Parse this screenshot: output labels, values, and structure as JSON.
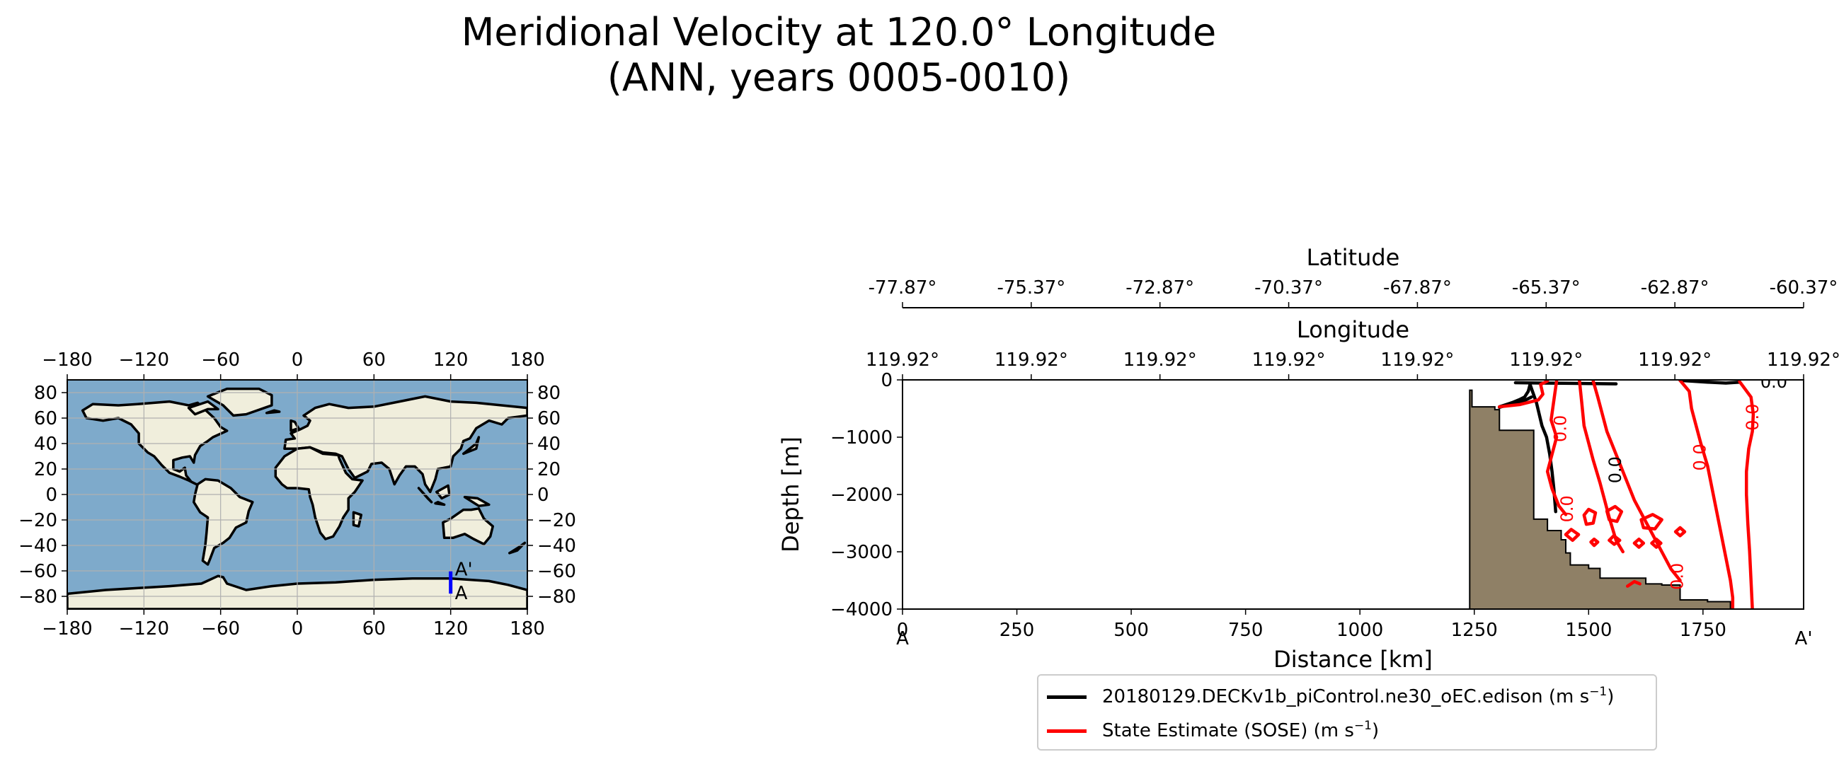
{
  "title": {
    "line1": "Meridional Velocity at 120.0° Longitude",
    "line2": "(ANN, years 0005-0010)"
  },
  "colors": {
    "land": "#f0eedc",
    "ocean": "#7eaacb",
    "seafloor": "#8f8066",
    "model_contour": "#000000",
    "obs_contour": "#ff0000",
    "transect": "#0000ff",
    "grid": "#b0b0b0"
  },
  "map": {
    "x_ticks": [
      "−180",
      "−120",
      "−60",
      "0",
      "60",
      "120",
      "180"
    ],
    "y_ticks": [
      "80",
      "60",
      "40",
      "20",
      "0",
      "−20",
      "−40",
      "−60",
      "−80"
    ],
    "x_tick_values": [
      -180,
      -120,
      -60,
      0,
      60,
      120,
      180
    ],
    "y_tick_values": [
      80,
      60,
      40,
      20,
      0,
      -20,
      -40,
      -60,
      -80
    ],
    "transect": {
      "lon": 120.0,
      "lat_start": -77.87,
      "lat_end": -60.37,
      "start_label": "A",
      "end_label": "A'"
    }
  },
  "chart_data": {
    "type": "contour",
    "xlabel": "Distance [km]",
    "ylabel": "Depth [m]",
    "xlim": [
      0,
      1970
    ],
    "ylim": [
      -4000,
      0
    ],
    "x_ticks": [
      0,
      250,
      500,
      750,
      1000,
      1250,
      1500,
      1750
    ],
    "x_tick_labels": [
      "0",
      "250",
      "500",
      "750",
      "1000",
      "1250",
      "1500",
      "1750"
    ],
    "y_ticks": [
      0,
      -1000,
      -2000,
      -3000,
      -4000
    ],
    "y_tick_labels": [
      "0",
      "−1000",
      "−2000",
      "−3000",
      "−4000"
    ],
    "endpoint_labels": [
      "A",
      "A'"
    ],
    "latitude_axis": {
      "label": "Latitude",
      "ticks": [
        "-77.87°",
        "-75.37°",
        "-72.87°",
        "-70.37°",
        "-67.87°",
        "-65.37°",
        "-62.87°",
        "-60.37°"
      ]
    },
    "longitude_axis": {
      "label": "Longitude",
      "ticks": [
        "119.92°",
        "119.92°",
        "119.92°",
        "119.92°",
        "119.92°",
        "119.92°",
        "119.92°",
        "119.92°"
      ]
    },
    "bathymetry": [
      [
        0,
        -4000
      ],
      [
        1240,
        -4000
      ],
      [
        1240,
        -180
      ],
      [
        1245,
        -180
      ],
      [
        1245,
        -470
      ],
      [
        1295,
        -470
      ],
      [
        1295,
        -520
      ],
      [
        1305,
        -520
      ],
      [
        1305,
        -880
      ],
      [
        1380,
        -880
      ],
      [
        1380,
        -2430
      ],
      [
        1410,
        -2430
      ],
      [
        1410,
        -2630
      ],
      [
        1440,
        -2630
      ],
      [
        1440,
        -2790
      ],
      [
        1450,
        -2790
      ],
      [
        1450,
        -3020
      ],
      [
        1460,
        -3020
      ],
      [
        1460,
        -3230
      ],
      [
        1500,
        -3230
      ],
      [
        1500,
        -3290
      ],
      [
        1525,
        -3290
      ],
      [
        1525,
        -3460
      ],
      [
        1625,
        -3460
      ],
      [
        1625,
        -3560
      ],
      [
        1660,
        -3560
      ],
      [
        1660,
        -3580
      ],
      [
        1700,
        -3580
      ],
      [
        1700,
        -3840
      ],
      [
        1760,
        -3840
      ],
      [
        1760,
        -3870
      ],
      [
        1810,
        -3870
      ],
      [
        1810,
        -4000
      ]
    ],
    "contour_label": "0.0",
    "series": [
      {
        "name": "model",
        "legend": "20180129.DECKv1b_piControl.ne30_oEC.edison (m s",
        "color": "#000000",
        "lines": [
          [
            [
              1340,
              -50
            ],
            [
              1400,
              -55
            ],
            [
              1460,
              -60
            ],
            [
              1510,
              -65
            ],
            [
              1560,
              -70
            ]
          ],
          [
            [
              1305,
              -470
            ],
            [
              1320,
              -430
            ],
            [
              1335,
              -390
            ],
            [
              1350,
              -340
            ],
            [
              1360,
              -300
            ],
            [
              1368,
              -200
            ],
            [
              1372,
              -80
            ]
          ],
          [
            [
              1372,
              -80
            ],
            [
              1386,
              -400
            ],
            [
              1398,
              -800
            ],
            [
              1408,
              -1000
            ],
            [
              1415,
              -1300
            ],
            [
              1420,
              -1600
            ],
            [
              1424,
              -1900
            ],
            [
              1428,
              -2300
            ]
          ],
          [
            [
              1305,
              -480
            ],
            [
              1330,
              -420
            ],
            [
              1360,
              -360
            ],
            [
              1375,
              -300
            ]
          ],
          [
            [
              1700,
              -10
            ],
            [
              1760,
              -40
            ],
            [
              1800,
              -55
            ],
            [
              1830,
              -40
            ]
          ]
        ]
      },
      {
        "name": "obs",
        "legend": "State Estimate (SOSE) (m s",
        "color": "#ff0000",
        "lines": [
          [
            [
              1305,
              -470
            ],
            [
              1350,
              -430
            ],
            [
              1390,
              -350
            ],
            [
              1400,
              -250
            ],
            [
              1395,
              -80
            ],
            [
              1410,
              -20
            ]
          ],
          [
            [
              1430,
              -20
            ],
            [
              1425,
              -300
            ],
            [
              1418,
              -700
            ],
            [
              1430,
              -1000
            ],
            [
              1420,
              -1300
            ],
            [
              1410,
              -1600
            ],
            [
              1420,
              -1900
            ],
            [
              1435,
              -2200
            ],
            [
              1450,
              -2350
            ]
          ],
          [
            [
              1480,
              -15
            ],
            [
              1485,
              -400
            ],
            [
              1490,
              -800
            ],
            [
              1500,
              -1100
            ],
            [
              1510,
              -1400
            ],
            [
              1525,
              -1800
            ],
            [
              1535,
              -2100
            ],
            [
              1545,
              -2400
            ],
            [
              1560,
              -2800
            ],
            [
              1575,
              -3000
            ]
          ],
          [
            [
              1510,
              -20
            ],
            [
              1520,
              -300
            ],
            [
              1530,
              -600
            ],
            [
              1540,
              -900
            ],
            [
              1560,
              -1300
            ],
            [
              1580,
              -1700
            ],
            [
              1600,
              -2100
            ],
            [
              1620,
              -2400
            ],
            [
              1640,
              -2700
            ],
            [
              1660,
              -3000
            ],
            [
              1680,
              -3300
            ],
            [
              1700,
              -3500
            ]
          ],
          [
            [
              1700,
              -10
            ],
            [
              1720,
              -200
            ],
            [
              1725,
              -500
            ],
            [
              1735,
              -800
            ],
            [
              1745,
              -1100
            ],
            [
              1760,
              -1500
            ],
            [
              1770,
              -1900
            ],
            [
              1780,
              -2300
            ],
            [
              1790,
              -2700
            ],
            [
              1800,
              -3100
            ],
            [
              1810,
              -3500
            ],
            [
              1815,
              -3800
            ],
            [
              1815,
              -4000
            ]
          ],
          [
            [
              1830,
              -30
            ],
            [
              1855,
              -300
            ],
            [
              1860,
              -600
            ],
            [
              1858,
              -900
            ],
            [
              1850,
              -1200
            ],
            [
              1845,
              -1600
            ],
            [
              1845,
              -2000
            ],
            [
              1848,
              -2500
            ],
            [
              1852,
              -3000
            ],
            [
              1855,
              -3500
            ],
            [
              1858,
              -4000
            ]
          ],
          [
            [
              1490,
              -2360
            ],
            [
              1500,
              -2260
            ],
            [
              1515,
              -2320
            ],
            [
              1510,
              -2500
            ],
            [
              1495,
              -2520
            ],
            [
              1490,
              -2360
            ]
          ],
          [
            [
              1540,
              -2290
            ],
            [
              1558,
              -2210
            ],
            [
              1572,
              -2300
            ],
            [
              1562,
              -2470
            ],
            [
              1545,
              -2440
            ],
            [
              1540,
              -2290
            ]
          ],
          [
            [
              1615,
              -2440
            ],
            [
              1640,
              -2350
            ],
            [
              1660,
              -2440
            ],
            [
              1645,
              -2600
            ],
            [
              1620,
              -2580
            ],
            [
              1615,
              -2440
            ]
          ],
          [
            [
              1450,
              -2700
            ],
            [
              1462,
              -2610
            ],
            [
              1478,
              -2700
            ],
            [
              1465,
              -2800
            ],
            [
              1450,
              -2700
            ]
          ],
          [
            [
              1505,
              -2830
            ],
            [
              1512,
              -2780
            ],
            [
              1520,
              -2830
            ],
            [
              1512,
              -2890
            ],
            [
              1505,
              -2830
            ]
          ],
          [
            [
              1545,
              -2800
            ],
            [
              1555,
              -2720
            ],
            [
              1568,
              -2800
            ],
            [
              1556,
              -2870
            ],
            [
              1545,
              -2800
            ]
          ],
          [
            [
              1600,
              -2850
            ],
            [
              1610,
              -2780
            ],
            [
              1620,
              -2850
            ],
            [
              1610,
              -2920
            ],
            [
              1600,
              -2850
            ]
          ],
          [
            [
              1638,
              -2850
            ],
            [
              1648,
              -2780
            ],
            [
              1658,
              -2850
            ],
            [
              1648,
              -2920
            ],
            [
              1638,
              -2850
            ]
          ],
          [
            [
              1690,
              -2650
            ],
            [
              1700,
              -2580
            ],
            [
              1710,
              -2650
            ],
            [
              1700,
              -2720
            ],
            [
              1690,
              -2650
            ]
          ],
          [
            [
              1585,
              -3600
            ],
            [
              1600,
              -3520
            ],
            [
              1612,
              -3560
            ]
          ]
        ]
      }
    ],
    "label_positions": [
      {
        "x": 1440,
        "y": -850,
        "rot": -90,
        "color": "#ff0000"
      },
      {
        "x": 1455,
        "y": -2250,
        "rot": -90,
        "color": "#ff0000"
      },
      {
        "x": 1560,
        "y": -1570,
        "rot": -90,
        "color": "#000000"
      },
      {
        "x": 1745,
        "y": -1350,
        "rot": -90,
        "color": "#ff0000"
      },
      {
        "x": 1860,
        "y": -650,
        "rot": -90,
        "color": "#ff0000"
      },
      {
        "x": 1695,
        "y": -3430,
        "rot": -90,
        "color": "#ff0000"
      },
      {
        "x": 1905,
        "y": -50,
        "rot": 0,
        "color": "#000000"
      }
    ]
  },
  "legend": {
    "model_label": "20180129.DECKv1b_piControl.ne30_oEC.edison (m s",
    "obs_label": "State Estimate (SOSE) (m s",
    "unit_sup": "−1",
    "unit_close": ")"
  }
}
